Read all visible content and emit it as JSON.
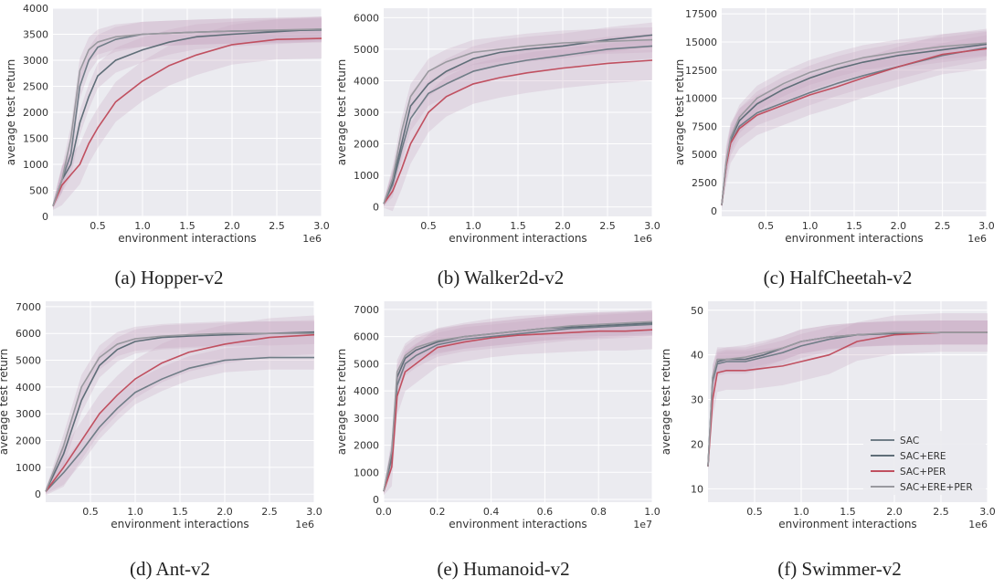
{
  "colors": {
    "panel_bg": "#ebebf0",
    "grid": "#ffffff",
    "band": "#c9a9c2",
    "series": [
      "#707d87",
      "#5f6e78",
      "#c05060",
      "#99999f"
    ]
  },
  "legend": {
    "entries": [
      "SAC",
      "SAC+ERE",
      "SAC+PER",
      "SAC+ERE+PER"
    ],
    "placement": "lower-right of panel (f)"
  },
  "chart_data": [
    {
      "type": "line",
      "caption": "(a) Hopper-v2",
      "xlabel": "environment interactions",
      "ylabel": "average test return",
      "x_offset_label": "1e6",
      "xlim": [
        0,
        3.0
      ],
      "ylim": [
        0,
        4000
      ],
      "xticks": [
        0.5,
        1.0,
        1.5,
        2.0,
        2.5,
        3.0
      ],
      "xtick_labels": [
        "0.5",
        "1.0",
        "1.5",
        "2.0",
        "2.5",
        "3.0"
      ],
      "yticks": [
        0,
        500,
        1000,
        1500,
        2000,
        2500,
        3000,
        3500,
        4000
      ],
      "ytick_labels": [
        "0",
        "500",
        "1000",
        "1500",
        "2000",
        "2500",
        "3000",
        "3500",
        "4000"
      ],
      "x": [
        0,
        0.1,
        0.2,
        0.3,
        0.4,
        0.5,
        0.7,
        1.0,
        1.3,
        1.6,
        2.0,
        2.5,
        3.0
      ],
      "series": [
        {
          "name": "SAC",
          "values": [
            200,
            700,
            1200,
            2500,
            3000,
            3250,
            3400,
            3500,
            3520,
            3540,
            3560,
            3570,
            3580
          ]
        },
        {
          "name": "SAC+ERE",
          "values": [
            200,
            700,
            1000,
            1800,
            2300,
            2700,
            3000,
            3200,
            3350,
            3450,
            3500,
            3550,
            3600
          ]
        },
        {
          "name": "SAC+PER",
          "values": [
            200,
            600,
            800,
            1000,
            1400,
            1700,
            2200,
            2600,
            2900,
            3100,
            3300,
            3400,
            3420
          ]
        },
        {
          "name": "SAC+ERE+PER",
          "values": [
            200,
            700,
            1500,
            2800,
            3200,
            3350,
            3450,
            3500,
            3520,
            3540,
            3560,
            3580,
            3600
          ]
        }
      ]
    },
    {
      "type": "line",
      "caption": "(b) Walker2d-v2",
      "xlabel": "environment interactions",
      "ylabel": "average test return",
      "x_offset_label": "1e6",
      "xlim": [
        0,
        3.0
      ],
      "ylim": [
        -300,
        6300
      ],
      "xticks": [
        0.5,
        1.0,
        1.5,
        2.0,
        2.5,
        3.0
      ],
      "xtick_labels": [
        "0.5",
        "1.0",
        "1.5",
        "2.0",
        "2.5",
        "3.0"
      ],
      "yticks": [
        0,
        1000,
        2000,
        3000,
        4000,
        5000,
        6000
      ],
      "ytick_labels": [
        "0",
        "1000",
        "2000",
        "3000",
        "4000",
        "5000",
        "6000"
      ],
      "x": [
        0,
        0.1,
        0.2,
        0.3,
        0.5,
        0.7,
        1.0,
        1.3,
        1.6,
        2.0,
        2.5,
        3.0
      ],
      "series": [
        {
          "name": "SAC",
          "values": [
            100,
            700,
            1800,
            2800,
            3600,
            3900,
            4300,
            4500,
            4650,
            4800,
            5000,
            5100
          ]
        },
        {
          "name": "SAC+ERE",
          "values": [
            100,
            800,
            2000,
            3200,
            3900,
            4300,
            4700,
            4900,
            5000,
            5100,
            5300,
            5450
          ]
        },
        {
          "name": "SAC+PER",
          "values": [
            100,
            500,
            1200,
            2000,
            3000,
            3500,
            3900,
            4100,
            4250,
            4400,
            4550,
            4650
          ]
        },
        {
          "name": "SAC+ERE+PER",
          "values": [
            100,
            900,
            2400,
            3500,
            4300,
            4600,
            4900,
            5000,
            5100,
            5200,
            5250,
            5300
          ]
        }
      ]
    },
    {
      "type": "line",
      "caption": "(c) HalfCheetah-v2",
      "xlabel": "environment interactions",
      "ylabel": "average test return",
      "x_offset_label": "1e6",
      "xlim": [
        0,
        3.0
      ],
      "ylim": [
        -500,
        18000
      ],
      "xticks": [
        0.5,
        1.0,
        1.5,
        2.0,
        2.5,
        3.0
      ],
      "xtick_labels": [
        "0.5",
        "1.0",
        "1.5",
        "2.0",
        "2.5",
        "3.0"
      ],
      "yticks": [
        0,
        2500,
        5000,
        7500,
        10000,
        12500,
        15000,
        17500
      ],
      "ytick_labels": [
        "0",
        "2500",
        "5000",
        "7500",
        "10000",
        "12500",
        "15000",
        "17500"
      ],
      "x": [
        0,
        0.05,
        0.1,
        0.2,
        0.4,
        0.7,
        1.0,
        1.3,
        1.6,
        2.0,
        2.5,
        3.0
      ],
      "series": [
        {
          "name": "SAC",
          "values": [
            500,
            4000,
            6000,
            7500,
            8700,
            9600,
            10500,
            11300,
            12000,
            12800,
            13800,
            14500
          ]
        },
        {
          "name": "SAC+ERE",
          "values": [
            500,
            4200,
            6300,
            8000,
            9500,
            10800,
            11800,
            12600,
            13200,
            13800,
            14300,
            14800
          ]
        },
        {
          "name": "SAC+PER",
          "values": [
            500,
            4000,
            6000,
            7300,
            8500,
            9400,
            10300,
            11000,
            11800,
            12800,
            13900,
            14400
          ]
        },
        {
          "name": "SAC+ERE+PER",
          "values": [
            500,
            4300,
            6500,
            8300,
            10000,
            11300,
            12300,
            13000,
            13600,
            14100,
            14600,
            14900
          ]
        }
      ]
    },
    {
      "type": "line",
      "caption": "(d) Ant-v2",
      "xlabel": "environment interactions",
      "ylabel": "average test return",
      "x_offset_label": "1e6",
      "xlim": [
        0,
        3.0
      ],
      "ylim": [
        -300,
        7200
      ],
      "xticks": [
        0.5,
        1.0,
        1.5,
        2.0,
        2.5,
        3.0
      ],
      "xtick_labels": [
        "0.5",
        "1.0",
        "1.5",
        "2.0",
        "2.5",
        "3.0"
      ],
      "yticks": [
        0,
        1000,
        2000,
        3000,
        4000,
        5000,
        6000,
        7000
      ],
      "ytick_labels": [
        "0",
        "1000",
        "2000",
        "3000",
        "4000",
        "5000",
        "6000",
        "7000"
      ],
      "x": [
        0,
        0.2,
        0.4,
        0.6,
        0.8,
        1.0,
        1.3,
        1.6,
        2.0,
        2.5,
        3.0
      ],
      "series": [
        {
          "name": "SAC",
          "values": [
            100,
            800,
            1600,
            2500,
            3200,
            3800,
            4300,
            4700,
            5000,
            5100,
            5100
          ]
        },
        {
          "name": "SAC+ERE",
          "values": [
            100,
            1500,
            3500,
            4800,
            5400,
            5700,
            5850,
            5900,
            5950,
            6000,
            6050
          ]
        },
        {
          "name": "SAC+PER",
          "values": [
            100,
            1000,
            2000,
            3000,
            3700,
            4300,
            4900,
            5300,
            5600,
            5850,
            5950
          ]
        },
        {
          "name": "SAC+ERE+PER",
          "values": [
            100,
            1800,
            4000,
            5100,
            5600,
            5800,
            5900,
            5950,
            6000,
            6000,
            6000
          ]
        }
      ]
    },
    {
      "type": "line",
      "caption": "(e) Humanoid-v2",
      "xlabel": "environment interactions",
      "ylabel": "average test return",
      "x_offset_label": "1e7",
      "xlim": [
        0,
        1.0
      ],
      "ylim": [
        -100,
        7300
      ],
      "xticks": [
        0.0,
        0.2,
        0.4,
        0.6,
        0.8,
        1.0
      ],
      "xtick_labels": [
        "0.0",
        "0.2",
        "0.4",
        "0.6",
        "0.8",
        "1.0"
      ],
      "yticks": [
        0,
        1000,
        2000,
        3000,
        4000,
        5000,
        6000,
        7000
      ],
      "ytick_labels": [
        "0",
        "1000",
        "2000",
        "3000",
        "4000",
        "5000",
        "6000",
        "7000"
      ],
      "x": [
        0,
        0.03,
        0.05,
        0.08,
        0.12,
        0.2,
        0.3,
        0.4,
        0.5,
        0.6,
        0.7,
        0.8,
        0.9,
        1.0
      ],
      "series": [
        {
          "name": "SAC",
          "values": [
            300,
            1500,
            4200,
            5000,
            5300,
            5700,
            5900,
            6000,
            6100,
            6200,
            6300,
            6350,
            6400,
            6450
          ]
        },
        {
          "name": "SAC+ERE",
          "values": [
            300,
            1700,
            4500,
            5200,
            5500,
            5800,
            6000,
            6100,
            6200,
            6300,
            6350,
            6400,
            6450,
            6500
          ]
        },
        {
          "name": "SAC+PER",
          "values": [
            300,
            1200,
            3800,
            4700,
            5000,
            5600,
            5800,
            5950,
            6050,
            6100,
            6150,
            6200,
            6200,
            6250
          ]
        },
        {
          "name": "SAC+ERE+PER",
          "values": [
            300,
            1800,
            4700,
            5300,
            5600,
            5850,
            6000,
            6100,
            6200,
            6300,
            6400,
            6450,
            6500,
            6550
          ]
        }
      ]
    },
    {
      "type": "line",
      "caption": "(f) Swimmer-v2",
      "xlabel": "environment interactions",
      "ylabel": "average test return",
      "x_offset_label": "1e6",
      "xlim": [
        0,
        3.0
      ],
      "ylim": [
        7,
        52
      ],
      "xticks": [
        0.5,
        1.0,
        1.5,
        2.0,
        2.5,
        3.0
      ],
      "xtick_labels": [
        "0.5",
        "1.0",
        "1.5",
        "2.0",
        "2.5",
        "3.0"
      ],
      "yticks": [
        10,
        20,
        30,
        40,
        50
      ],
      "ytick_labels": [
        "10",
        "20",
        "30",
        "40",
        "50"
      ],
      "x": [
        0,
        0.05,
        0.1,
        0.2,
        0.4,
        0.6,
        0.8,
        1.0,
        1.3,
        1.6,
        2.0,
        2.5,
        3.0
      ],
      "series": [
        {
          "name": "SAC",
          "values": [
            15,
            34,
            38,
            38.5,
            38.5,
            39.5,
            40.5,
            42,
            43.5,
            44.5,
            44.8,
            45,
            45
          ]
        },
        {
          "name": "SAC+ERE",
          "values": [
            15,
            35,
            38.5,
            39,
            39,
            40,
            41.5,
            43,
            44,
            44.5,
            44.8,
            45,
            45
          ]
        },
        {
          "name": "SAC+PER",
          "values": [
            15,
            30,
            36,
            36.5,
            36.5,
            37,
            37.5,
            38.5,
            40,
            43,
            44.5,
            45,
            45
          ]
        },
        {
          "name": "SAC+ERE+PER",
          "values": [
            15,
            35,
            39,
            39,
            39.5,
            40.5,
            41.5,
            43,
            44,
            44.5,
            45,
            45,
            45
          ]
        }
      ]
    }
  ]
}
